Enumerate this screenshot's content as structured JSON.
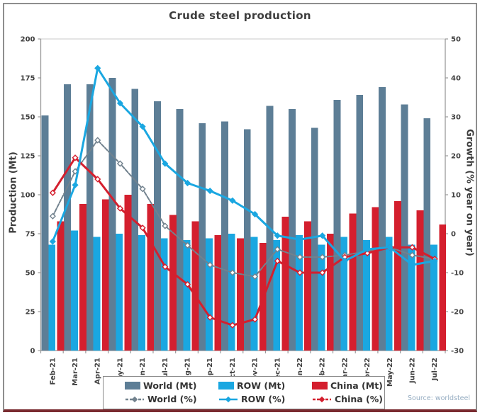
{
  "title": "Crude steel production",
  "legend": [
    {
      "label": "World (Mt)",
      "type": "bar",
      "color": "#5d7e96"
    },
    {
      "label": "ROW (Mt)",
      "type": "bar",
      "color": "#1aa7e1"
    },
    {
      "label": "China (Mt)",
      "type": "bar",
      "color": "#d41f2e"
    },
    {
      "label": "World (%)",
      "type": "line",
      "color": "#72828e",
      "dash": "4,2",
      "marker": "open"
    },
    {
      "label": "ROW (%)",
      "type": "line",
      "color": "#1aa7e1",
      "dash": "",
      "marker": "solid"
    },
    {
      "label": "China (%)",
      "type": "line",
      "color": "#d41f2e",
      "dash": "4,2",
      "marker": "open"
    }
  ],
  "chart_data": {
    "type": "combo bar+line",
    "title": "Crude steel production",
    "source": "Source: worldsteel",
    "legend_position": "bottom",
    "grid": "off",
    "categories": [
      "Feb-21",
      "Mar-21",
      "Apr-21",
      "May-21",
      "Jun-21",
      "Jul-21",
      "Aug-21",
      "Sep-21",
      "Oct-21",
      "Nov-21",
      "Dec-21",
      "Jan-22",
      "Feb-22",
      "Mar-22",
      "Apr-22",
      "May-22",
      "Jun-22",
      "Jul-22"
    ],
    "left_axis": {
      "label": "Production (Mt)",
      "min": 0,
      "max": 200,
      "step": 25,
      "ticks": [
        0,
        25,
        50,
        75,
        100,
        125,
        150,
        175,
        200
      ]
    },
    "right_axis": {
      "label": "Growth (% year on year)",
      "min": -30,
      "max": 50,
      "step": 10,
      "ticks": [
        -30,
        -20,
        -10,
        0,
        10,
        20,
        30,
        40,
        50
      ]
    },
    "bar_series": [
      {
        "name": "World (Mt)",
        "key": "world-mt",
        "axis": "left",
        "color": "#5d7e96",
        "values": [
          151,
          171,
          171,
          175,
          168,
          160,
          155,
          146,
          147,
          142,
          157,
          155,
          143,
          161,
          164,
          169,
          158,
          149
        ]
      },
      {
        "name": "ROW (Mt)",
        "key": "row-mt",
        "axis": "left",
        "color": "#1aa7e1",
        "values": [
          68,
          77,
          73,
          75,
          74,
          72,
          71,
          72,
          75,
          73,
          71,
          74,
          68,
          73,
          71,
          73,
          68,
          68
        ]
      },
      {
        "name": "China (Mt)",
        "key": "china-mt",
        "axis": "left",
        "color": "#d41f2e",
        "values": [
          83,
          94,
          97,
          100,
          94,
          87,
          83,
          74,
          72,
          69,
          86,
          83,
          75,
          88,
          92,
          96,
          90,
          81
        ]
      }
    ],
    "line_series": [
      {
        "name": "World (%)",
        "key": "world-pct",
        "axis": "right",
        "color": "#72828e",
        "width": 2,
        "dash": "5,2",
        "marker": "open",
        "values": [
          4.5,
          16,
          24,
          18,
          11.5,
          2,
          -3,
          -8,
          -10,
          -11,
          -4,
          -6,
          -6,
          -5.5,
          -4.5,
          -3.5,
          -5.5,
          -6.5
        ]
      },
      {
        "name": "China (%)",
        "key": "china-pct",
        "axis": "right",
        "color": "#d41f2e",
        "width": 3,
        "dash": "",
        "marker": "open",
        "values": [
          10.5,
          19.5,
          14,
          6.5,
          1.5,
          -8.5,
          -13,
          -21.5,
          -23.5,
          -22,
          -7,
          -10,
          -10,
          -6,
          -5,
          -3.5,
          -3.5,
          -6.5
        ]
      },
      {
        "name": "ROW (%)",
        "key": "row-pct",
        "axis": "right",
        "color": "#1aa7e1",
        "width": 3,
        "dash": "",
        "marker": "solid",
        "values": [
          -2,
          12.5,
          42.5,
          33.5,
          27.5,
          18,
          13,
          11,
          8.5,
          5,
          -0.5,
          -1.5,
          -0.5,
          -7,
          -4,
          -3.5,
          -8,
          -7
        ]
      }
    ]
  }
}
